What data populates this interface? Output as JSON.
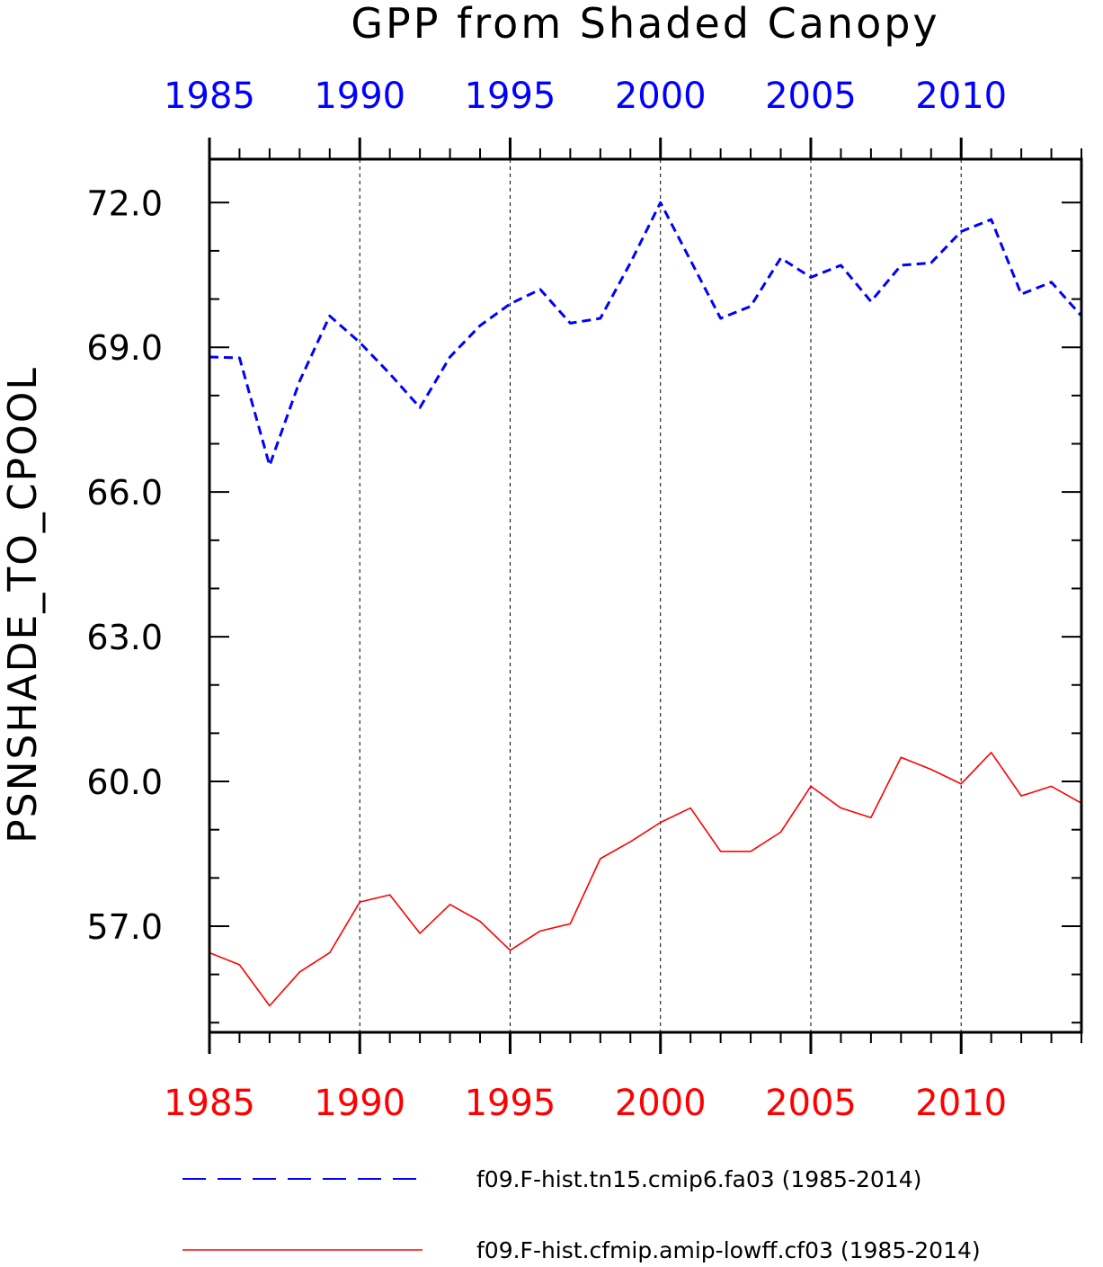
{
  "chart_data": {
    "type": "line",
    "title": "GPP from Shaded Canopy",
    "ylabel": "PSNSHADE_TO_CPOOL",
    "xlabel": "",
    "xlim": [
      1985,
      2014
    ],
    "ylim": [
      54.8,
      72.9
    ],
    "yticks": [
      57.0,
      60.0,
      63.0,
      66.0,
      69.0,
      72.0
    ],
    "ytick_labels": [
      "57.0",
      "60.0",
      "63.0",
      "66.0",
      "69.0",
      "72.0"
    ],
    "xticks": [
      1985,
      1990,
      1995,
      2000,
      2005,
      2010
    ],
    "xtick_labels": [
      "1985",
      "1990",
      "1995",
      "2000",
      "2005",
      "2010"
    ],
    "x_minor_step": 1,
    "y_minor_step": 1,
    "grid": "dashed vertical lines at major x ticks",
    "legend_position": "bottom",
    "x": [
      1985,
      1986,
      1987,
      1988,
      1989,
      1990,
      1991,
      1992,
      1993,
      1994,
      1995,
      1996,
      1997,
      1998,
      1999,
      2000,
      2001,
      2002,
      2003,
      2004,
      2005,
      2006,
      2007,
      2008,
      2009,
      2010,
      2011,
      2012,
      2013,
      2014
    ],
    "series": [
      {
        "name": "f09.F-hist.tn15.cmip6.fa03 (1985-2014)",
        "color": "#0000ff",
        "style": "dashed",
        "axis": "top",
        "values": [
          68.8,
          68.78,
          66.55,
          68.3,
          69.65,
          69.1,
          68.45,
          67.75,
          68.8,
          69.45,
          69.9,
          70.2,
          69.5,
          69.6,
          70.75,
          72.0,
          70.8,
          69.6,
          69.85,
          70.85,
          70.45,
          70.7,
          69.95,
          70.7,
          70.75,
          71.4,
          71.65,
          70.1,
          70.35,
          69.65
        ]
      },
      {
        "name": "f09.F-hist.cfmip.amip-lowff.cf03 (1985-2014)",
        "color": "#ff0000",
        "style": "solid",
        "axis": "bottom",
        "values": [
          56.45,
          56.2,
          55.35,
          56.05,
          56.45,
          57.5,
          57.65,
          56.85,
          57.45,
          57.1,
          56.5,
          56.9,
          57.05,
          58.4,
          58.75,
          59.15,
          59.45,
          58.55,
          58.55,
          58.95,
          59.9,
          59.45,
          59.25,
          60.5,
          60.25,
          59.95,
          60.6,
          59.7,
          59.9,
          59.55
        ]
      }
    ]
  }
}
